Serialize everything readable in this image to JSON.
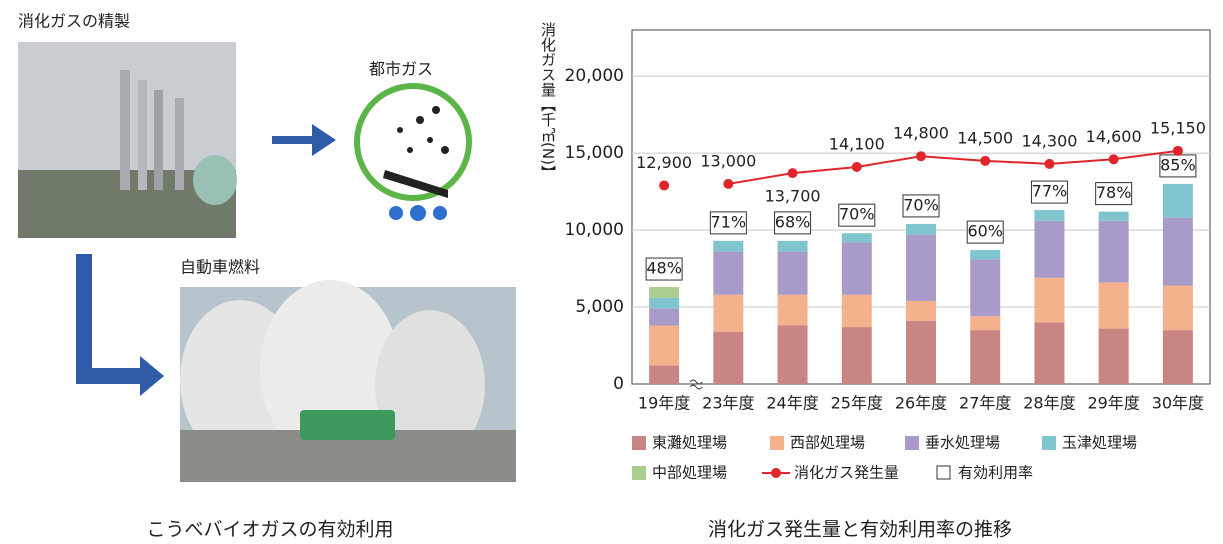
{
  "diagram": {
    "refine_label": "消化ガスの精製",
    "city_gas_label": "都市ガス",
    "vehicle_label": "自動車燃料",
    "caption": "こうべバイオガスの有効利用"
  },
  "chart_data": {
    "type": "stacked-bar-line",
    "caption": "消化ガス発生量と有効利用率の推移",
    "ylabel": "消化ガス量【千㎥(N)】",
    "categories": [
      "19年度",
      "23年度",
      "24年度",
      "25年度",
      "26年度",
      "27年度",
      "28年度",
      "29年度",
      "30年度"
    ],
    "ylim": [
      0,
      23000
    ],
    "yticks": [
      0,
      {
        "value": 5000,
        "label": "5,000"
      },
      {
        "value": 10000,
        "label": "10,000"
      },
      {
        "value": 15000,
        "label": "15,000"
      },
      {
        "value": 20000,
        "label": "20,000"
      }
    ],
    "grid": true,
    "series": [
      {
        "name": "東灘処理場",
        "color": "#c98484",
        "values": [
          1200,
          3400,
          3800,
          3700,
          4100,
          3500,
          4000,
          3600,
          3500
        ]
      },
      {
        "name": "西部処理場",
        "color": "#f3b28c",
        "values": [
          2600,
          2400,
          2000,
          2100,
          1300,
          900,
          2900,
          3000,
          2900
        ]
      },
      {
        "name": "垂水処理場",
        "color": "#a99bc9",
        "values": [
          1100,
          2800,
          2800,
          3400,
          4300,
          3700,
          3700,
          4000,
          4400
        ]
      },
      {
        "name": "玉津処理場",
        "color": "#80c4cd",
        "values": [
          700,
          700,
          700,
          600,
          700,
          600,
          700,
          600,
          2200
        ]
      },
      {
        "name": "中部処理場",
        "color": "#abcd90",
        "values": [
          700,
          0,
          0,
          0,
          0,
          0,
          0,
          0,
          0
        ]
      }
    ],
    "line": {
      "name": "消化ガス発生量",
      "color": "#e0262a",
      "values": [
        12900,
        13000,
        13700,
        14100,
        14800,
        14500,
        14300,
        14600,
        15150
      ],
      "value_labels": [
        "12,900",
        "13,000",
        "13,700",
        "14,100",
        "14,800",
        "14,500",
        "14,300",
        "14,600",
        "15,150"
      ]
    },
    "rate": {
      "name": "有効利用率",
      "values": [
        48,
        71,
        68,
        70,
        70,
        60,
        77,
        78,
        85
      ],
      "value_labels": [
        "48%",
        "71%",
        "68%",
        "70%",
        "70%",
        "60%",
        "77%",
        "78%",
        "85%"
      ]
    }
  }
}
